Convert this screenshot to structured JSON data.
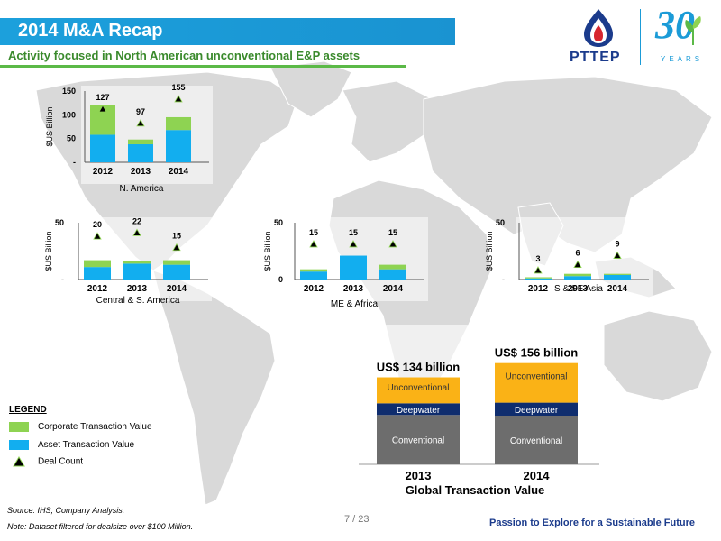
{
  "header": {
    "title": "2014 M&A Recap",
    "subtitle": "Activity focused in North American unconventional E&P assets",
    "logo_text": "PTTEP",
    "anniversary_number": "30",
    "anniversary_word": "YEARS"
  },
  "colors": {
    "corporate": "#8ed352",
    "asset": "#12aeef",
    "deal": "#000000",
    "unconventional": "#fab216",
    "deepwater": "#0f2d6e",
    "conventional": "#6d6d6d",
    "title_bar": "#1ca0dc",
    "map": "#d9d9d9"
  },
  "chart_data": [
    {
      "type": "bar",
      "title": "N. America",
      "ylabel": "$US Billion",
      "ylim": [
        0,
        150
      ],
      "yticks": [
        "-",
        "50",
        "100",
        "150"
      ],
      "categories": [
        "2012",
        "2013",
        "2014"
      ],
      "series": [
        {
          "name": "Asset Transaction Value",
          "values": [
            58,
            38,
            68
          ]
        },
        {
          "name": "Corporate Transaction Value",
          "values": [
            62,
            10,
            27
          ]
        }
      ],
      "deal_counts": [
        "127",
        "97",
        "155"
      ],
      "deal_markers": [
        112,
        82,
        133
      ]
    },
    {
      "type": "bar",
      "title": "Central & S. America",
      "ylabel": "$US Billion",
      "ylim": [
        0,
        50
      ],
      "yticks": [
        "-",
        "50"
      ],
      "categories": [
        "2012",
        "2013",
        "2014"
      ],
      "series": [
        {
          "name": "Asset Transaction Value",
          "values": [
            11,
            14,
            13
          ]
        },
        {
          "name": "Corporate Transaction Value",
          "values": [
            6,
            2,
            4
          ]
        }
      ],
      "deal_counts": [
        "20",
        "22",
        "15"
      ],
      "deal_markers": [
        38,
        41,
        28
      ]
    },
    {
      "type": "bar",
      "title": "ME & Africa",
      "ylabel": "$US Billion",
      "ylim": [
        0,
        50
      ],
      "yticks": [
        "0",
        "50"
      ],
      "categories": [
        "2012",
        "2013",
        "2014"
      ],
      "series": [
        {
          "name": "Asset Transaction Value",
          "values": [
            7,
            21,
            9
          ]
        },
        {
          "name": "Corporate Transaction Value",
          "values": [
            2,
            0,
            4
          ]
        }
      ],
      "deal_counts": [
        "15",
        "15",
        "15"
      ],
      "deal_markers": [
        31,
        31,
        31
      ]
    },
    {
      "type": "bar",
      "title": "S & SE Asia",
      "ylabel": "$US Billion",
      "ylim": [
        0,
        50
      ],
      "yticks": [
        "-",
        "50"
      ],
      "categories": [
        "2012",
        "2013",
        "2014"
      ],
      "series": [
        {
          "name": "Asset Transaction Value",
          "values": [
            1,
            3,
            4
          ]
        },
        {
          "name": "Corporate Transaction Value",
          "values": [
            1,
            2,
            1
          ]
        }
      ],
      "deal_counts": [
        "3",
        "6",
        "9"
      ],
      "deal_markers": [
        8,
        13,
        21
      ]
    },
    {
      "type": "bar",
      "title": "Global Transaction Value",
      "categories": [
        "2013",
        "2014"
      ],
      "totals": [
        "US$ 134 billion",
        "US$ 156 billion"
      ],
      "total_values": [
        134,
        156
      ],
      "series": [
        {
          "name": "Conventional",
          "values": [
            76,
            75
          ]
        },
        {
          "name": "Deepwater",
          "values": [
            18,
            20
          ]
        },
        {
          "name": "Unconventional",
          "values": [
            40,
            61
          ]
        }
      ]
    }
  ],
  "legend": {
    "title": "LEGEND",
    "items": [
      "Corporate Transaction Value",
      "Asset Transaction Value",
      "Deal Count"
    ]
  },
  "footer": {
    "source": "Source: IHS, Company Analysis,",
    "note": "Note: Dataset filtered for dealsize over $100 Million.",
    "page": "7 / 23",
    "tagline": "Passion to Explore for a Sustainable Future"
  }
}
